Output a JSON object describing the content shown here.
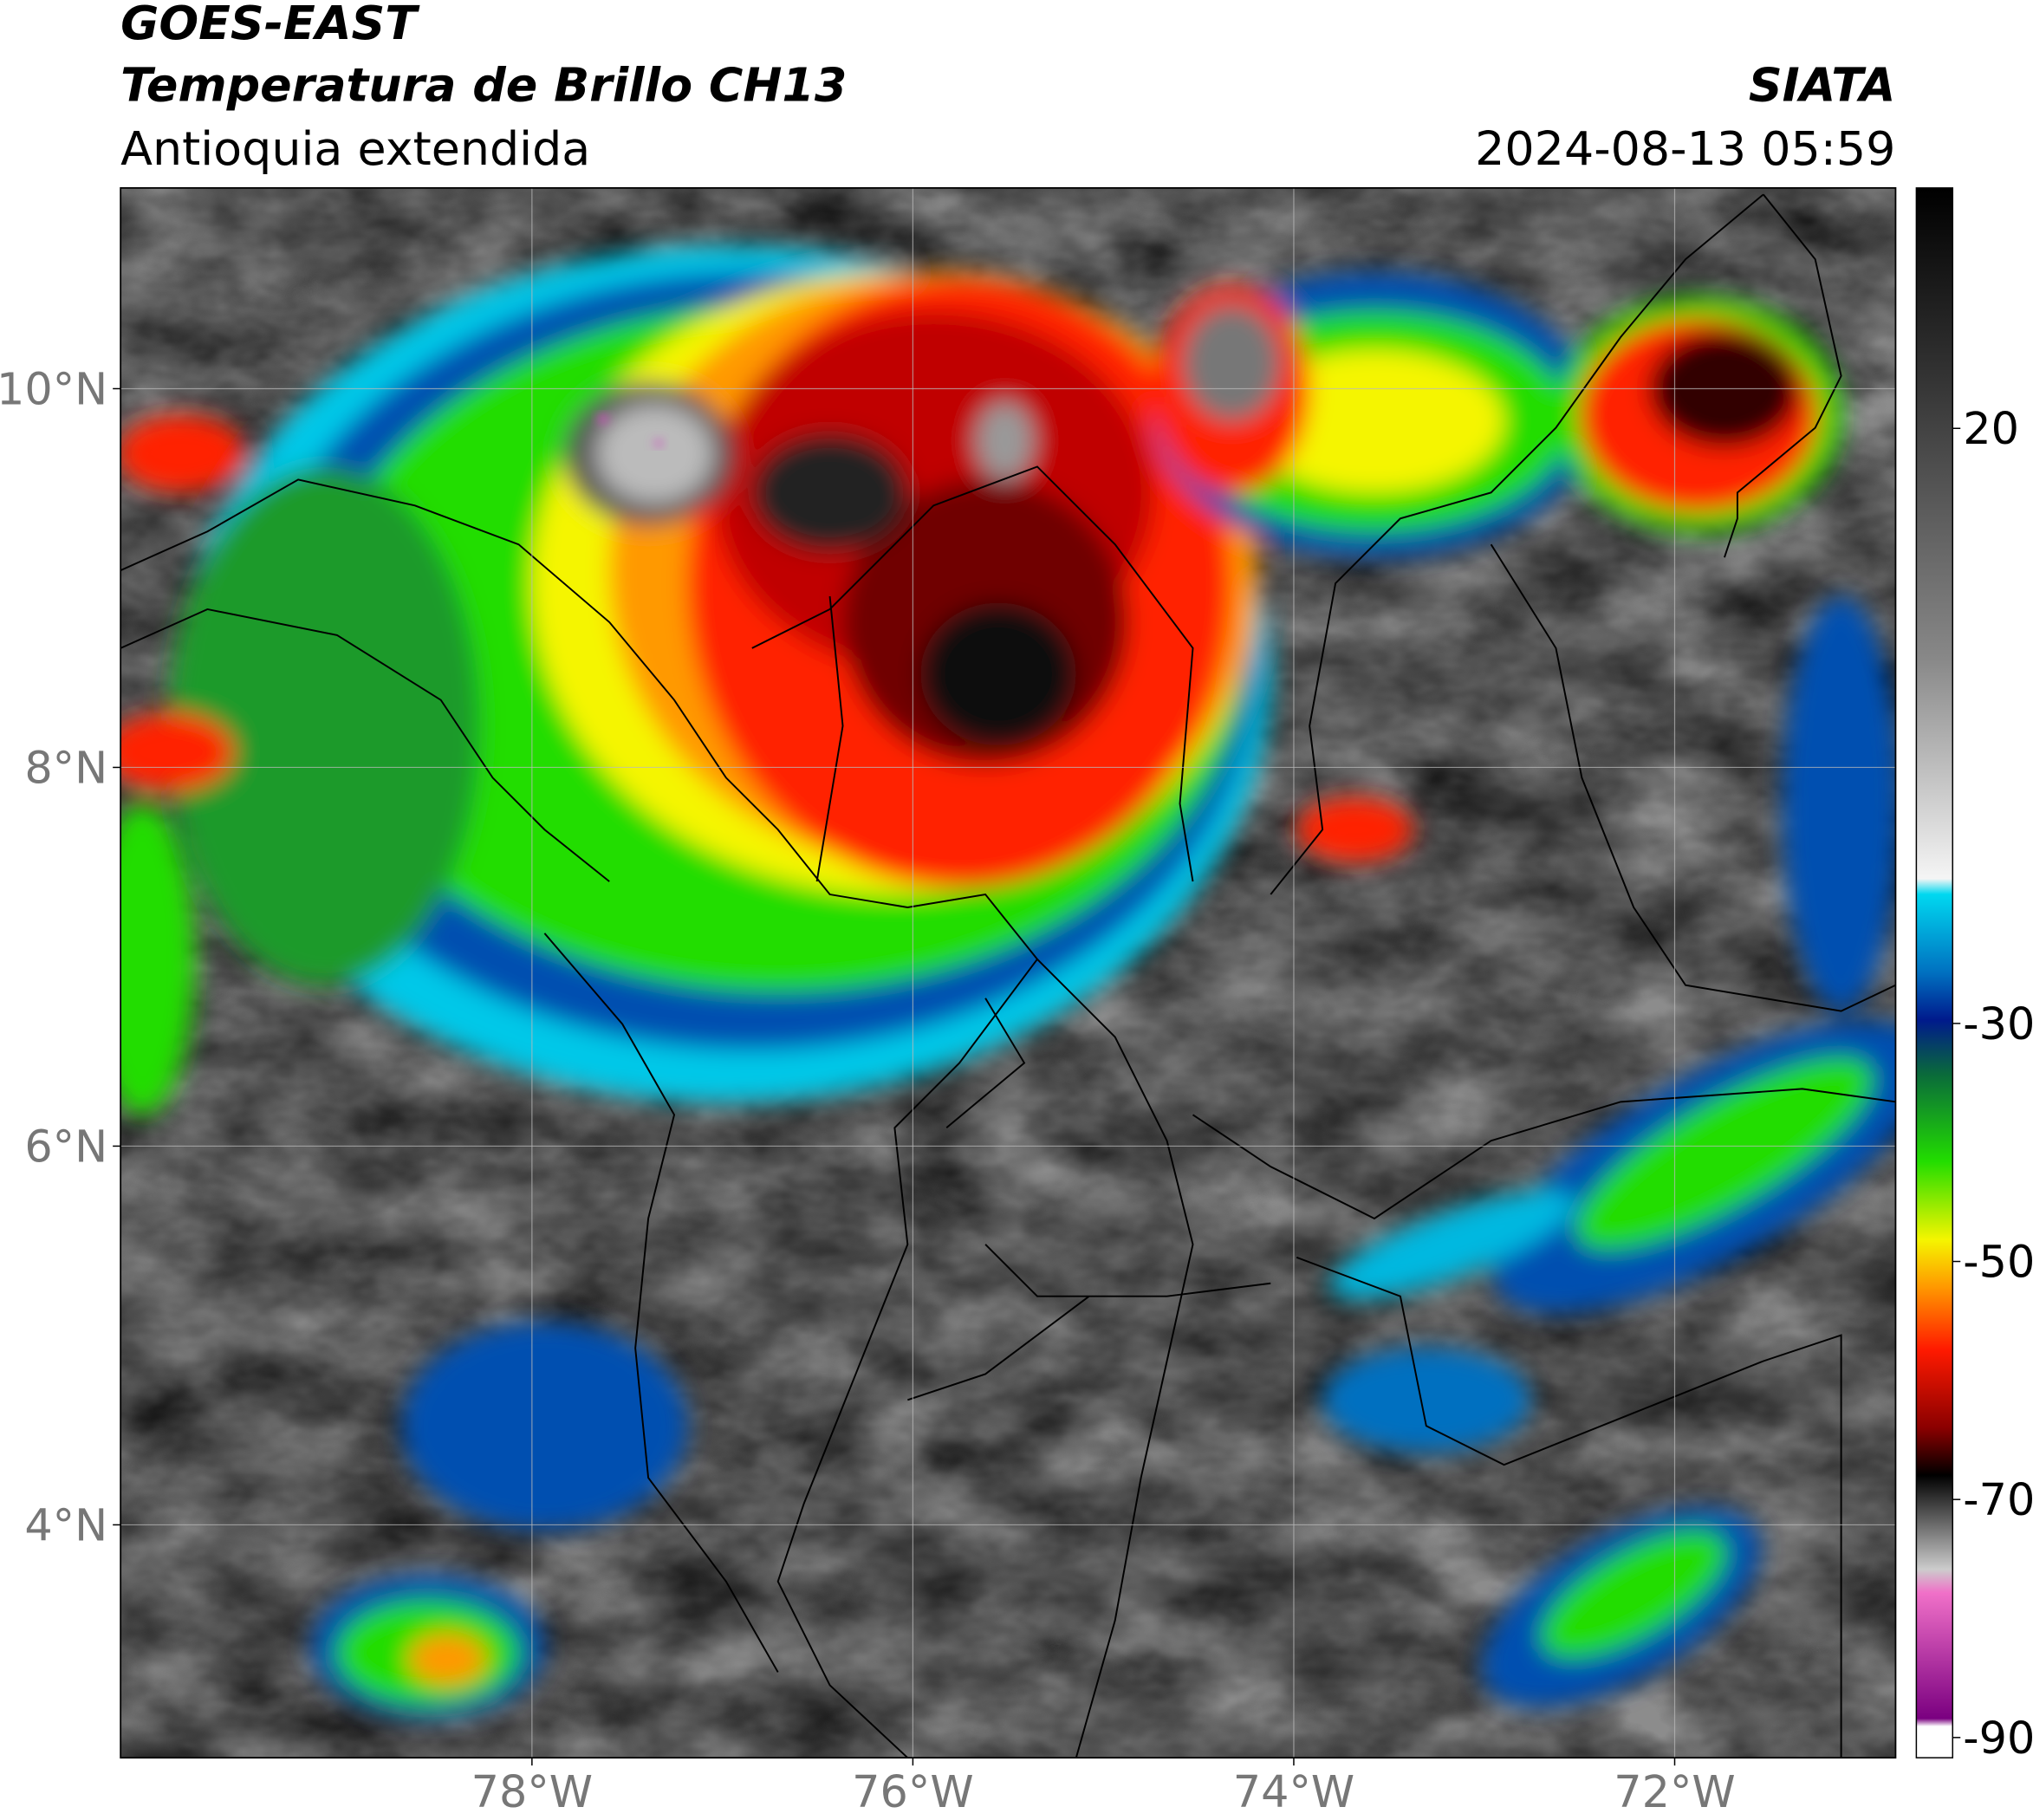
{
  "header": {
    "title": "GOES-EAST",
    "subtitle": "Temperatura de Brillo CH13",
    "region": "Antioquia extendida",
    "source": "SIATA",
    "timestamp": "2024-08-13 05:59"
  },
  "map": {
    "lon_range": [
      -80.16,
      -70.84
    ],
    "lat_range": [
      2.77,
      11.06
    ],
    "lat_ticks": [
      {
        "value": 10,
        "label": "10°N"
      },
      {
        "value": 8,
        "label": "8°N"
      },
      {
        "value": 6,
        "label": "6°N"
      },
      {
        "value": 4,
        "label": "4°N"
      }
    ],
    "lon_ticks": [
      {
        "value": -78,
        "label": "78°W"
      },
      {
        "value": -76,
        "label": "76°W"
      },
      {
        "value": -74,
        "label": "74°W"
      },
      {
        "value": -72,
        "label": "72°W"
      }
    ],
    "grid": true
  },
  "colorbar": {
    "range": [
      -91.7,
      40.2
    ],
    "ticks": [
      20,
      -30,
      -50,
      -70,
      -90
    ]
  }
}
